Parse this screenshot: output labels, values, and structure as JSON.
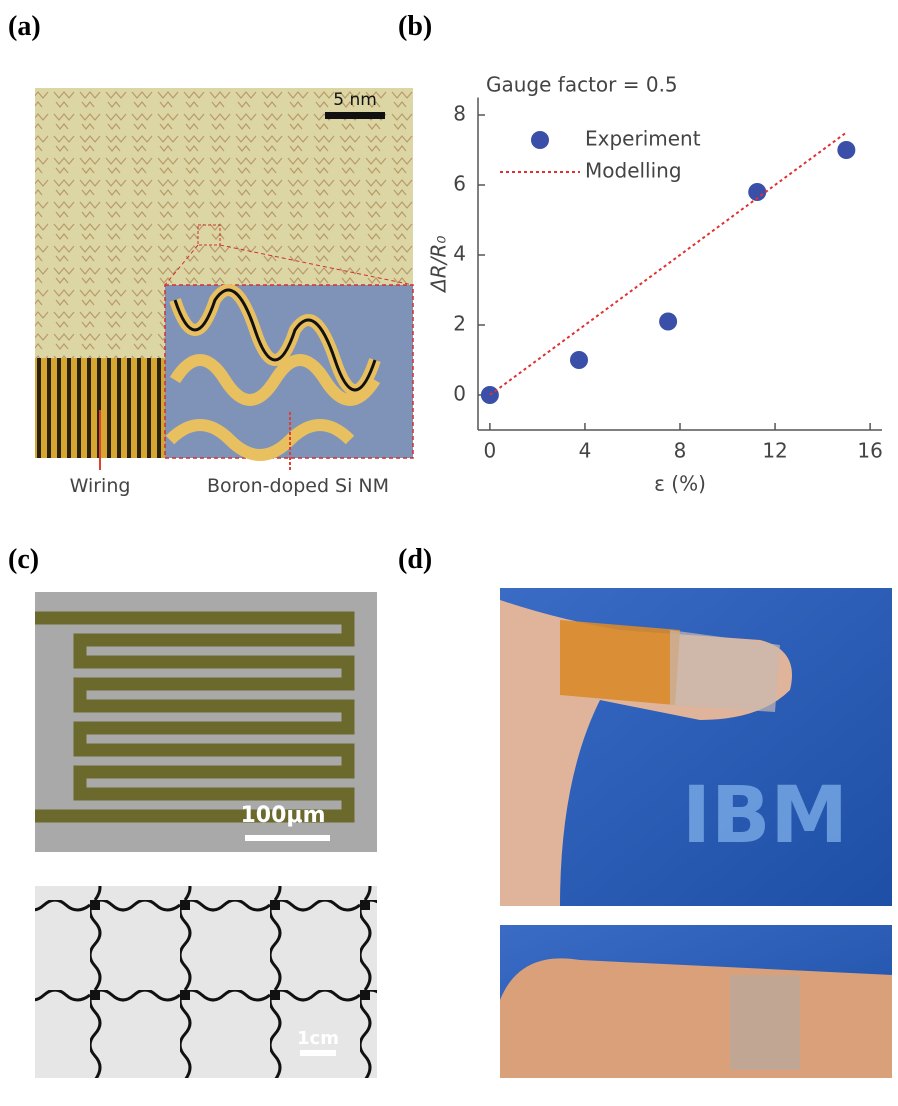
{
  "panels": {
    "a": {
      "label": "(a)",
      "scale_bar": "5 nm",
      "labels": [
        "Wiring",
        "Boron-doped Si NM"
      ]
    },
    "b": {
      "label": "(b)"
    },
    "c": {
      "label": "(c)",
      "scale_bars": [
        "100μm",
        "1cm"
      ]
    },
    "d": {
      "label": "(d)",
      "logo": "IBM"
    }
  },
  "chart_data": {
    "type": "scatter",
    "title": "Gauge factor = 0.5",
    "xlabel": "ε (%)",
    "ylabel": "ΔR/R₀",
    "xlim": [
      -0.5,
      16.5
    ],
    "ylim": [
      -1,
      8.5
    ],
    "xticks": [
      0,
      4,
      8,
      12,
      16
    ],
    "yticks": [
      0,
      2,
      4,
      6,
      8
    ],
    "legend": "upper left",
    "series": [
      {
        "name": "Experiment",
        "type": "scatter",
        "color": "#3a4fa8",
        "x": [
          0,
          3.75,
          7.5,
          11.25,
          15
        ],
        "values": [
          0,
          1,
          2.1,
          5.8,
          7
        ]
      },
      {
        "name": "Modelling",
        "type": "line",
        "color": "#e03030",
        "x": [
          0,
          15
        ],
        "values": [
          0,
          7.5
        ]
      }
    ]
  }
}
